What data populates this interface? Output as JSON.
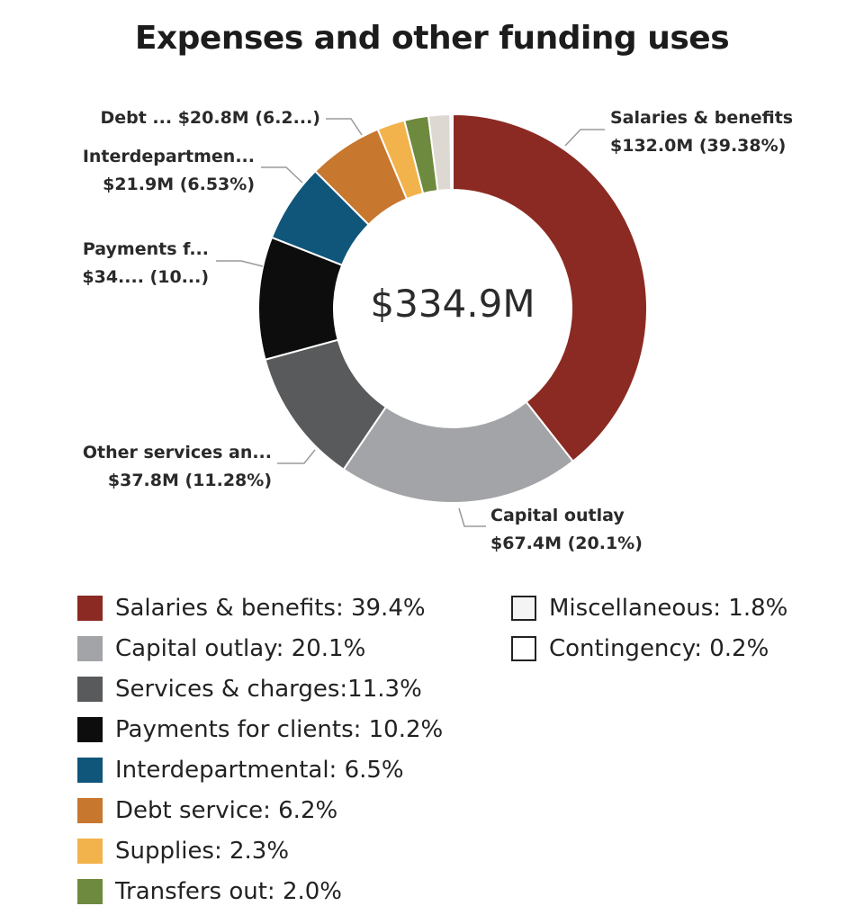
{
  "title": "Expenses and other funding uses",
  "chart_data": {
    "type": "pie",
    "variant": "donut",
    "total_label": "$334.9M",
    "slices": [
      {
        "name": "Salaries & benefits",
        "percent": 39.38,
        "color": "#8b2a22"
      },
      {
        "name": "Capital outlay",
        "percent": 20.1,
        "color": "#a3a4a7"
      },
      {
        "name": "Services & charges",
        "percent": 11.28,
        "color": "#595a5c"
      },
      {
        "name": "Payments for clients",
        "percent": 10.2,
        "color": "#0d0d0d"
      },
      {
        "name": "Interdepartmental",
        "percent": 6.53,
        "color": "#10557a"
      },
      {
        "name": "Debt service",
        "percent": 6.2,
        "color": "#c7772e"
      },
      {
        "name": "Supplies",
        "percent": 2.3,
        "color": "#f2b34c"
      },
      {
        "name": "Transfers out",
        "percent": 2.0,
        "color": "#6e8a3e"
      },
      {
        "name": "Miscellaneous",
        "percent": 1.8,
        "color": "#ddd8d2"
      },
      {
        "name": "Contingency",
        "percent": 0.2,
        "color": "#f4f4f4"
      }
    ],
    "callouts": [
      {
        "slice": 0,
        "lines": [
          "Salaries & benefits",
          "$132.0M (39.38%)"
        ]
      },
      {
        "slice": 1,
        "lines": [
          "Capital outlay",
          "$67.4M (20.1%)"
        ]
      },
      {
        "slice": 2,
        "lines": [
          "Other services an...",
          "$37.8M (11.28%)"
        ]
      },
      {
        "slice": 3,
        "lines": [
          "Payments f...",
          "$34.... (10...)"
        ]
      },
      {
        "slice": 4,
        "lines": [
          "Interdepartmen...",
          "$21.9M (6.53%)"
        ]
      },
      {
        "slice": 5,
        "lines": [
          "Debt ... $20.8M (6.2...)"
        ]
      }
    ],
    "legend": [
      {
        "label": "Salaries & benefits: 39.4%",
        "color": "#8b2a22",
        "outlined": false
      },
      {
        "label": "Capital outlay: 20.1%",
        "color": "#a3a4a7",
        "outlined": false
      },
      {
        "label": "Services & charges:11.3%",
        "color": "#595a5c",
        "outlined": false
      },
      {
        "label": "Payments for clients: 10.2%",
        "color": "#0d0d0d",
        "outlined": false
      },
      {
        "label": "Interdepartmental: 6.5%",
        "color": "#10557a",
        "outlined": false
      },
      {
        "label": "Debt service: 6.2%",
        "color": "#c7772e",
        "outlined": false
      },
      {
        "label": "Supplies: 2.3%",
        "color": "#f2b34c",
        "outlined": false
      },
      {
        "label": "Transfers out: 2.0%",
        "color": "#6e8a3e",
        "outlined": false
      },
      {
        "label": "Miscellaneous: 1.8%",
        "color": "#f4f4f4",
        "outlined": true
      },
      {
        "label": "Contingency: 0.2%",
        "color": "#ffffff",
        "outlined": true
      }
    ]
  }
}
